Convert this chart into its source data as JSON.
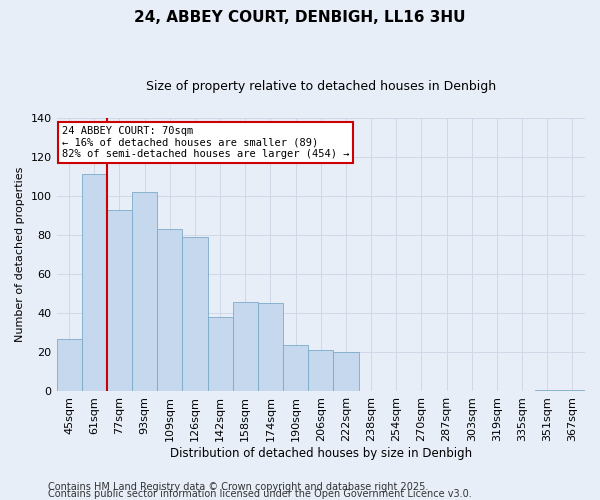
{
  "title": "24, ABBEY COURT, DENBIGH, LL16 3HU",
  "subtitle": "Size of property relative to detached houses in Denbigh",
  "xlabel": "Distribution of detached houses by size in Denbigh",
  "ylabel": "Number of detached properties",
  "bar_labels": [
    "45sqm",
    "61sqm",
    "77sqm",
    "93sqm",
    "109sqm",
    "126sqm",
    "142sqm",
    "158sqm",
    "174sqm",
    "190sqm",
    "206sqm",
    "222sqm",
    "238sqm",
    "254sqm",
    "270sqm",
    "287sqm",
    "303sqm",
    "319sqm",
    "335sqm",
    "351sqm",
    "367sqm"
  ],
  "bar_values": [
    27,
    111,
    93,
    102,
    83,
    79,
    38,
    46,
    45,
    24,
    21,
    20,
    0,
    0,
    0,
    0,
    0,
    0,
    0,
    1,
    1
  ],
  "bar_color": "#c5d8ed",
  "bar_edge_color": "#7baac8",
  "bg_color": "#e8eef8",
  "grid_color": "#d0d8e8",
  "vline_color": "#cc0000",
  "vline_x_index": 1.5,
  "annotation_text": "24 ABBEY COURT: 70sqm\n← 16% of detached houses are smaller (89)\n82% of semi-detached houses are larger (454) →",
  "annotation_box_color": "#ffffff",
  "annotation_box_edge": "#cc0000",
  "footer1": "Contains HM Land Registry data © Crown copyright and database right 2025.",
  "footer2": "Contains public sector information licensed under the Open Government Licence v3.0.",
  "ylim": [
    0,
    140
  ],
  "title_fontsize": 11,
  "subtitle_fontsize": 9,
  "axis_fontsize": 8,
  "footer_fontsize": 7
}
